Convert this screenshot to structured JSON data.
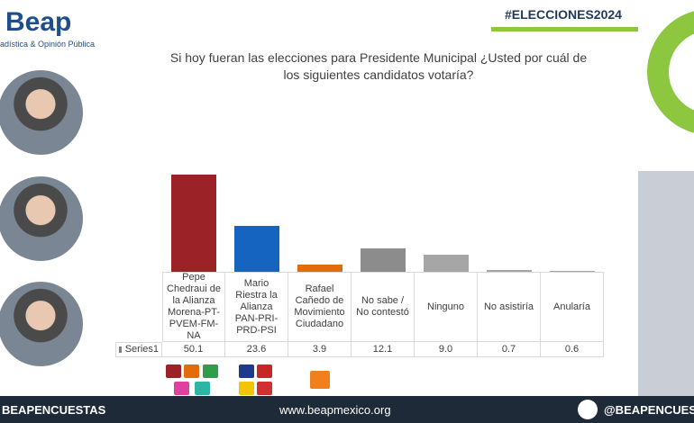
{
  "chart_data": {
    "type": "bar",
    "brand": "Beap",
    "brand_tagline": "adística & Opinión Pública",
    "hashtag": "#ELECCIONES2024",
    "title": "Si hoy fueran las elecciones para Presidente Municipal ¿Usted por cuál de los siguientes candidatos votaría?",
    "categories": [
      "Pepe Chedraui de la Alianza Morena-PT-PVEM-FM-NA",
      "Mario Riestra la Alianza PAN-PRI-PRD-PSI",
      "Rafael Cañedo de Movimiento Ciudadano",
      "No sabe / No contestó",
      "Ninguno",
      "No asistiría",
      "Anularía"
    ],
    "series": [
      {
        "name": "Series1",
        "colors": [
          "#9b2226",
          "#1565c0",
          "#e36c0a",
          "#8c8c8c",
          "#a6a6a6",
          "#a6a6a6",
          "#a6a6a6"
        ],
        "values": [
          50.1,
          23.6,
          3.9,
          12.1,
          9.0,
          0.7,
          0.6
        ],
        "value_labels": [
          "50.1",
          "23.6",
          "3.9",
          "12.1",
          "9.0",
          "0.7",
          "0.6"
        ]
      }
    ],
    "footer": {
      "left": "BEAPENCUESTAS",
      "center": "www.beapmexico.org",
      "right": "@BEAPENCUESTAS"
    }
  }
}
